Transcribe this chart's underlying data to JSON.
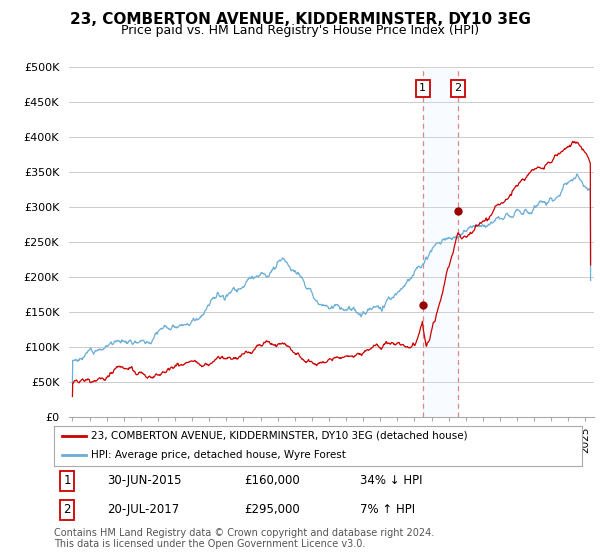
{
  "title": "23, COMBERTON AVENUE, KIDDERMINSTER, DY10 3EG",
  "subtitle": "Price paid vs. HM Land Registry's House Price Index (HPI)",
  "ylabel_ticks": [
    "£0",
    "£50K",
    "£100K",
    "£150K",
    "£200K",
    "£250K",
    "£300K",
    "£350K",
    "£400K",
    "£450K",
    "£500K"
  ],
  "ytick_values": [
    0,
    50000,
    100000,
    150000,
    200000,
    250000,
    300000,
    350000,
    400000,
    450000,
    500000
  ],
  "xlim_start": 1994.8,
  "xlim_end": 2025.5,
  "ylim": [
    0,
    500000
  ],
  "hpi_color": "#6baed6",
  "price_color": "#cc0000",
  "marker_color": "#990000",
  "vline_color": "#dd8888",
  "highlight_box_color": "#ddeeff",
  "transaction1_date": 2015.49,
  "transaction1_price": 160000,
  "transaction2_date": 2017.55,
  "transaction2_price": 295000,
  "legend_entry1": "23, COMBERTON AVENUE, KIDDERMINSTER, DY10 3EG (detached house)",
  "legend_entry2": "HPI: Average price, detached house, Wyre Forest",
  "table_row1": [
    "1",
    "30-JUN-2015",
    "£160,000",
    "34% ↓ HPI"
  ],
  "table_row2": [
    "2",
    "20-JUL-2017",
    "£295,000",
    "7% ↑ HPI"
  ],
  "footer": "Contains HM Land Registry data © Crown copyright and database right 2024.\nThis data is licensed under the Open Government Licence v3.0.",
  "background_color": "#ffffff",
  "grid_color": "#cccccc"
}
